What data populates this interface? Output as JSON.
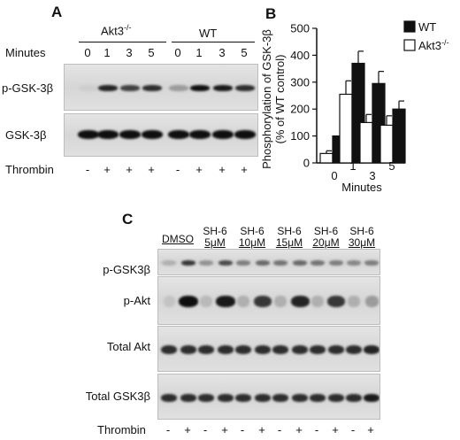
{
  "panelA": {
    "letter": "A",
    "group1_label": "Akt3",
    "group1_sup": "-/-",
    "group2_label": "WT",
    "minutes_label": "Minutes",
    "lanes": [
      "0",
      "1",
      "3",
      "5",
      "0",
      "1",
      "3",
      "5"
    ],
    "row1_label": "p-GSK-3β",
    "row2_label": "GSK-3β",
    "thrombin_label": "Thrombin",
    "thrombin_signs": [
      "-",
      "+",
      "+",
      "+",
      "-",
      "+",
      "+",
      "+"
    ],
    "row1_intensity": [
      0.05,
      0.9,
      0.75,
      0.85,
      0.3,
      1.0,
      0.95,
      0.85
    ],
    "row2_intensity": [
      1.0,
      1.0,
      1.0,
      1.0,
      1.0,
      1.0,
      1.0,
      1.0
    ]
  },
  "panelC": {
    "letter": "C",
    "conditions": [
      {
        "line1": "DMSO",
        "line2": ""
      },
      {
        "line1": "SH-6",
        "line2": "5μM"
      },
      {
        "line1": "SH-6",
        "line2": "10μM"
      },
      {
        "line1": "SH-6",
        "line2": "15μM"
      },
      {
        "line1": "SH-6",
        "line2": "20μM"
      },
      {
        "line1": "SH-6",
        "line2": "30μM"
      }
    ],
    "rows": [
      "p-GSK3β",
      "p-Akt",
      "Total Akt",
      "Total GSK3β"
    ],
    "thrombin_label": "Thrombin",
    "thrombin_signs": [
      "-",
      "+",
      "-",
      "+",
      "-",
      "+",
      "-",
      "+",
      "-",
      "+",
      "-",
      "+"
    ],
    "intensity": {
      "p-GSK3β": [
        0.2,
        0.8,
        0.35,
        0.7,
        0.45,
        0.55,
        0.5,
        0.55,
        0.5,
        0.45,
        0.4,
        0.45
      ],
      "p-Akt": [
        0.1,
        1.0,
        0.15,
        0.95,
        0.2,
        0.8,
        0.2,
        0.9,
        0.2,
        0.8,
        0.2,
        0.3
      ],
      "Total Akt": [
        0.85,
        0.85,
        0.85,
        0.85,
        0.85,
        0.85,
        0.85,
        0.85,
        0.85,
        0.85,
        0.85,
        0.9
      ],
      "Total GSK3β": [
        0.85,
        0.85,
        0.85,
        0.85,
        0.85,
        0.85,
        0.85,
        0.85,
        0.85,
        0.85,
        0.85,
        0.95
      ]
    }
  },
  "chart_data": {
    "type": "bar",
    "letter": "B",
    "categories": [
      "0",
      "1",
      "3",
      "5"
    ],
    "xlabel": "Minutes",
    "ylabel_line1": "Phosphorylation of GSK-3β",
    "ylabel_line2": "(% of WT control)",
    "ylim": [
      0,
      500
    ],
    "yticks": [
      0,
      100,
      200,
      300,
      400,
      500
    ],
    "legend_position": "top-right",
    "series": [
      {
        "name": "WT",
        "color": "#111111",
        "values": [
          100,
          370,
          295,
          200
        ],
        "errors": [
          0,
          45,
          45,
          30
        ]
      },
      {
        "name": "Akt3",
        "name_sup": "-/-",
        "color": "#ffffff",
        "values": [
          35,
          255,
          150,
          140
        ],
        "errors": [
          10,
          50,
          30,
          35
        ]
      }
    ]
  }
}
